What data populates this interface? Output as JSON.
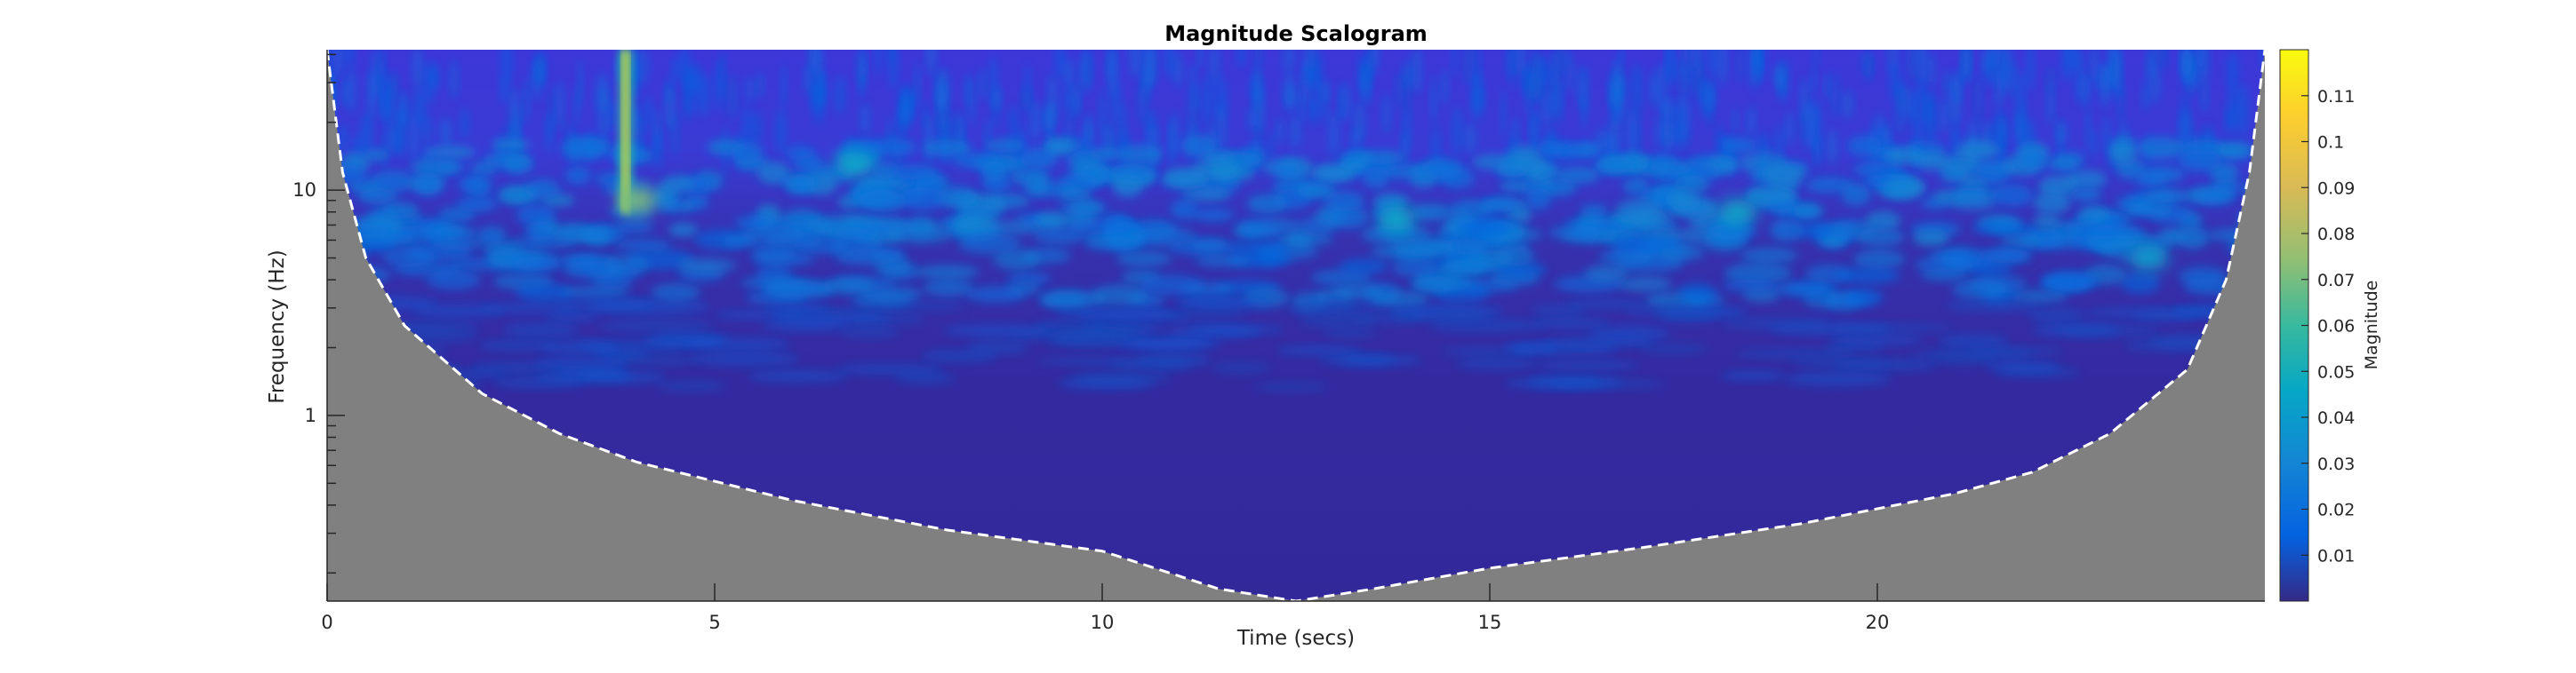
{
  "chart_data": {
    "type": "heatmap",
    "title": "Magnitude Scalogram",
    "xlabel": "Time (secs)",
    "ylabel": "Frequency (Hz)",
    "xlim": [
      0,
      25
    ],
    "ylim": [
      0.15,
      42
    ],
    "yscale": "log",
    "xticks": [
      0,
      5,
      10,
      15,
      20
    ],
    "yticks": [
      1,
      10
    ],
    "colormap": "parula",
    "colorbar": {
      "label": "Magnitude",
      "range": [
        0,
        0.12
      ],
      "ticks": [
        0.01,
        0.02,
        0.03,
        0.04,
        0.05,
        0.06,
        0.07,
        0.08,
        0.09,
        0.1,
        0.11
      ]
    },
    "cone_of_influence": {
      "style": "white dashed",
      "shaded_color": "#808080",
      "points": [
        {
          "t": 0.0,
          "f": 42
        },
        {
          "t": 0.2,
          "f": 12
        },
        {
          "t": 0.5,
          "f": 5
        },
        {
          "t": 1.0,
          "f": 2.5
        },
        {
          "t": 2.0,
          "f": 1.25
        },
        {
          "t": 3.0,
          "f": 0.83
        },
        {
          "t": 4.0,
          "f": 0.62
        },
        {
          "t": 6.0,
          "f": 0.42
        },
        {
          "t": 8.0,
          "f": 0.31
        },
        {
          "t": 10.0,
          "f": 0.25
        },
        {
          "t": 11.5,
          "f": 0.17
        },
        {
          "t": 12.5,
          "f": 0.15
        },
        {
          "t": 13.5,
          "f": 0.17
        },
        {
          "t": 15.0,
          "f": 0.21
        },
        {
          "t": 17.0,
          "f": 0.26
        },
        {
          "t": 19.0,
          "f": 0.33
        },
        {
          "t": 21.0,
          "f": 0.45
        },
        {
          "t": 22.0,
          "f": 0.56
        },
        {
          "t": 23.0,
          "f": 0.83
        },
        {
          "t": 24.0,
          "f": 1.6
        },
        {
          "t": 24.5,
          "f": 4
        },
        {
          "t": 24.8,
          "f": 12
        },
        {
          "t": 25.0,
          "f": 42
        }
      ]
    },
    "features": [
      {
        "label": "transient",
        "t": 3.85,
        "f_range": [
          8,
          42
        ],
        "magnitude": 0.11
      },
      {
        "label": "hotspot",
        "t": 4.0,
        "f": 9,
        "magnitude": 0.07
      },
      {
        "label": "hotspot",
        "t": 6.8,
        "f": 13,
        "magnitude": 0.045
      },
      {
        "label": "hotspot",
        "t": 13.8,
        "f": 7.5,
        "magnitude": 0.045
      },
      {
        "label": "hotspot",
        "t": 18.2,
        "f": 8,
        "magnitude": 0.045
      },
      {
        "label": "hotspot",
        "t": 23.5,
        "f": 5,
        "magnitude": 0.04
      }
    ]
  }
}
